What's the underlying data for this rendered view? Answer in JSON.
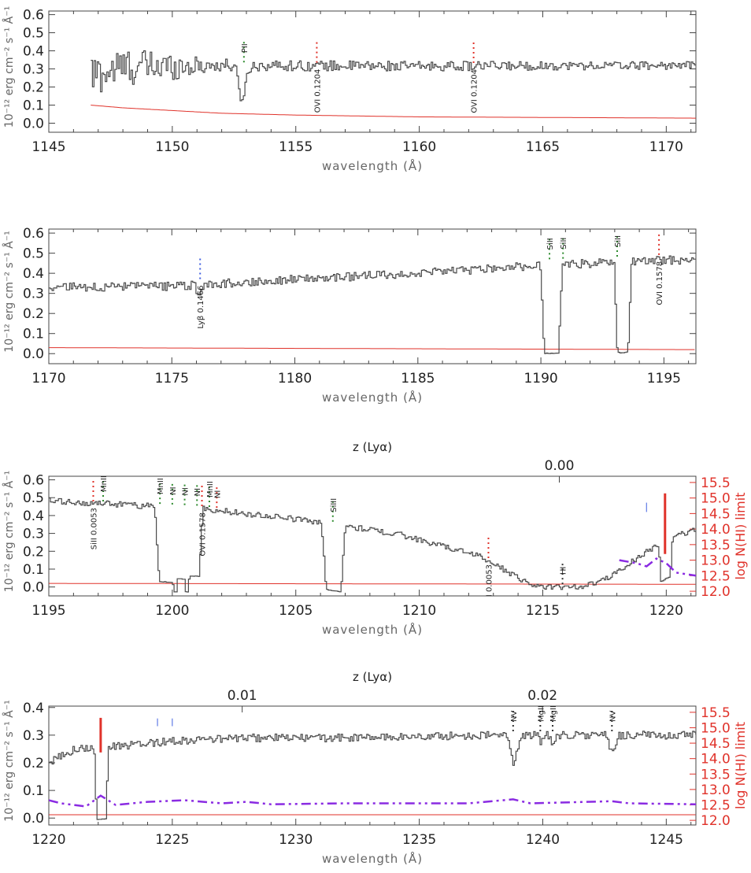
{
  "colors": {
    "spectrum": "#4a4a4a",
    "error": "#e0322a",
    "model": "#8a2be2",
    "right_axis": "#e0322a",
    "line_green": "#2e8b2e",
    "line_red": "#e0322a",
    "line_blue": "#4060e0",
    "nhi_marker": "#e0322a"
  },
  "chart_data": [
    {
      "type": "line",
      "panel": 1,
      "xlabel": "wavelength (Å)",
      "ylabel": "10⁻¹² erg cm⁻² s⁻¹ Å⁻¹",
      "xlim": [
        1145,
        1171.2
      ],
      "ylim": [
        -0.05,
        0.62
      ],
      "x_ticks": [
        1145,
        1150,
        1155,
        1160,
        1165,
        1170
      ],
      "y_ticks": [
        "0.0",
        "0.1",
        "0.2",
        "0.3",
        "0.4",
        "0.5",
        "0.6"
      ],
      "y_tick_values": [
        0.0,
        0.1,
        0.2,
        0.3,
        0.4,
        0.5,
        0.6
      ],
      "spectrum_start": 1146.7,
      "continuum": [
        [
          1146.7,
          0.26
        ],
        [
          1148,
          0.31
        ],
        [
          1152,
          0.32
        ],
        [
          1160,
          0.315
        ],
        [
          1171.2,
          0.32
        ]
      ],
      "noise_profile": [
        [
          1146.7,
          0.1
        ],
        [
          1149.5,
          0.075
        ],
        [
          1151,
          0.04
        ],
        [
          1153,
          0.025
        ],
        [
          1171.2,
          0.018
        ]
      ],
      "absorptions": [
        {
          "center": 1152.8,
          "depth": 0.18,
          "width": 0.2
        }
      ],
      "error_curve": [
        [
          1146.7,
          0.1
        ],
        [
          1148,
          0.085
        ],
        [
          1150,
          0.07
        ],
        [
          1152,
          0.055
        ],
        [
          1155,
          0.045
        ],
        [
          1160,
          0.035
        ],
        [
          1171.2,
          0.028
        ]
      ],
      "line_labels": [
        {
          "x": 1152.9,
          "text": "PII",
          "tick": "green"
        },
        {
          "x": 1155.85,
          "text": "OVI 0.1204",
          "tick": "red"
        },
        {
          "x": 1162.2,
          "text": "OVI 0.1204",
          "tick": "red"
        }
      ]
    },
    {
      "type": "line",
      "panel": 2,
      "xlabel": "wavelength (Å)",
      "ylabel": "10⁻¹² erg cm⁻² s⁻¹ Å⁻¹",
      "xlim": [
        1170,
        1196.3
      ],
      "ylim": [
        -0.05,
        0.62
      ],
      "x_ticks": [
        1170,
        1175,
        1180,
        1185,
        1190,
        1195
      ],
      "y_ticks": [
        "0.0",
        "0.1",
        "0.2",
        "0.3",
        "0.4",
        "0.5",
        "0.6"
      ],
      "y_tick_values": [
        0.0,
        0.1,
        0.2,
        0.3,
        0.4,
        0.5,
        0.6
      ],
      "spectrum_start": 1170,
      "continuum": [
        [
          1170,
          0.33
        ],
        [
          1175,
          0.335
        ],
        [
          1180,
          0.37
        ],
        [
          1185,
          0.4
        ],
        [
          1190,
          0.44
        ],
        [
          1196.3,
          0.47
        ]
      ],
      "noise_profile": [
        [
          1170,
          0.018
        ],
        [
          1196.3,
          0.018
        ]
      ],
      "absorptions": [
        {
          "center": 1176.1,
          "depth": 0.07,
          "width": 0.12
        },
        {
          "center": 1190.4,
          "depth": 0.44,
          "width": 0.28,
          "flat": true
        },
        {
          "center": 1193.3,
          "depth": 0.45,
          "width": 0.22,
          "flat": true
        }
      ],
      "error_curve": [
        [
          1170,
          0.03
        ],
        [
          1196.3,
          0.02
        ]
      ],
      "line_labels": [
        {
          "x": 1176.15,
          "text": "Lyβ 0.1466",
          "tick": "blue"
        },
        {
          "x": 1190.35,
          "text": "SiII",
          "tick": "green"
        },
        {
          "x": 1190.9,
          "text": "SiII",
          "tick": "green"
        },
        {
          "x": 1193.1,
          "text": "SiII",
          "tick": "green"
        },
        {
          "x": 1194.8,
          "text": "OVI 0.1578",
          "tick": "red"
        }
      ]
    },
    {
      "type": "line",
      "panel": 3,
      "xlabel": "wavelength (Å)",
      "ylabel": "10⁻¹² erg cm⁻² s⁻¹ Å⁻¹",
      "top_label": "z (Lyα)",
      "top_ticks": [
        {
          "x": 1215.67,
          "label": "0.00"
        }
      ],
      "right_label": "log N(HI) limit",
      "right_ticks": [
        "12.0",
        "12.5",
        "13.0",
        "13.5",
        "14.0",
        "14.5",
        "15.0",
        "15.5"
      ],
      "right_tick_values": [
        12.0,
        12.5,
        13.0,
        13.5,
        14.0,
        14.5,
        15.0,
        15.5
      ],
      "right_lim": [
        11.85,
        15.7
      ],
      "xlim": [
        1195,
        1221.2
      ],
      "ylim": [
        -0.05,
        0.62
      ],
      "x_ticks": [
        1195,
        1200,
        1205,
        1210,
        1215,
        1220
      ],
      "y_ticks": [
        "0.0",
        "0.1",
        "0.2",
        "0.3",
        "0.4",
        "0.5",
        "0.6"
      ],
      "y_tick_values": [
        0.0,
        0.1,
        0.2,
        0.3,
        0.4,
        0.5,
        0.6
      ],
      "spectrum_start": 1195,
      "continuum": [
        [
          1195,
          0.48
        ],
        [
          1198,
          0.46
        ],
        [
          1201,
          0.44
        ],
        [
          1205,
          0.38
        ],
        [
          1209,
          0.3
        ],
        [
          1212.5,
          0.17
        ],
        [
          1214,
          0.05
        ],
        [
          1214.8,
          0.0
        ],
        [
          1216.5,
          0.0
        ],
        [
          1217.5,
          0.04
        ],
        [
          1219,
          0.18
        ],
        [
          1220,
          0.27
        ],
        [
          1221.2,
          0.32
        ]
      ],
      "noise_profile": [
        [
          1195,
          0.015
        ],
        [
          1221.2,
          0.012
        ]
      ],
      "absorptions": [
        {
          "center": 1199.75,
          "depth": 0.42,
          "width": 0.3,
          "flat": true
        },
        {
          "center": 1200.4,
          "depth": 0.4,
          "width": 0.25,
          "flat": true
        },
        {
          "center": 1200.85,
          "depth": 0.38,
          "width": 0.22,
          "flat": true
        },
        {
          "center": 1206.5,
          "depth": 0.37,
          "width": 0.3,
          "flat": true
        },
        {
          "center": 1219.95,
          "depth": 0.22,
          "width": 0.18,
          "flat": true
        }
      ],
      "error_curve": [
        [
          1195,
          0.02
        ],
        [
          1221.2,
          0.015
        ]
      ],
      "model_curve": [
        [
          1218.1,
          13.0
        ],
        [
          1218.8,
          12.9
        ],
        [
          1219.2,
          12.8
        ],
        [
          1219.6,
          13.05
        ],
        [
          1220.0,
          12.9
        ],
        [
          1220.4,
          12.6
        ],
        [
          1221.2,
          12.5
        ]
      ],
      "nhi_markers": [
        {
          "x": 1219.95,
          "from": 13.2,
          "to": 15.15,
          "color": "red",
          "width": 3
        },
        {
          "x": 1219.2,
          "from": 14.55,
          "to": 14.85,
          "color": "blue",
          "width": 1
        }
      ],
      "line_labels": [
        {
          "x": 1196.8,
          "text": "SiII 0.0053",
          "tick": "red"
        },
        {
          "x": 1197.2,
          "text": "MnII",
          "tick": "green"
        },
        {
          "x": 1199.5,
          "text": "MnII",
          "tick": "green"
        },
        {
          "x": 1200.0,
          "text": "NI",
          "tick": "green"
        },
        {
          "x": 1200.5,
          "text": "NI",
          "tick": "green"
        },
        {
          "x": 1201.0,
          "text": "NI",
          "tick": "green"
        },
        {
          "x": 1201.2,
          "text": "OVI 0.1578",
          "tick": "red"
        },
        {
          "x": 1201.5,
          "text": "MnII",
          "tick": "green"
        },
        {
          "x": 1201.8,
          "text": "NI",
          "tick": "red"
        },
        {
          "x": 1206.5,
          "text": "SiIII",
          "tick": "green"
        },
        {
          "x": 1212.8,
          "text": "SiIII 0.0053",
          "tick": "red"
        },
        {
          "x": 1215.8,
          "text": "HI",
          "tick": "black"
        }
      ]
    },
    {
      "type": "line",
      "panel": 4,
      "xlabel": "wavelength (Å)",
      "ylabel": "10⁻¹² erg cm⁻² s⁻¹ Å⁻¹",
      "top_label": "z (Lyα)",
      "top_ticks": [
        {
          "x": 1227.83,
          "label": "0.01"
        },
        {
          "x": 1239.99,
          "label": "0.02"
        }
      ],
      "right_label": "log N(HI) limit",
      "right_ticks": [
        "12.0",
        "12.5",
        "13.0",
        "13.5",
        "14.0",
        "14.5",
        "15.0",
        "15.5"
      ],
      "right_tick_values": [
        12.0,
        12.5,
        13.0,
        13.5,
        14.0,
        14.5,
        15.0,
        15.5
      ],
      "right_lim": [
        11.85,
        15.7
      ],
      "xlim": [
        1220,
        1246.2
      ],
      "ylim": [
        -0.025,
        0.405
      ],
      "x_ticks": [
        1220,
        1225,
        1230,
        1235,
        1240,
        1245
      ],
      "y_ticks": [
        "0.0",
        "0.1",
        "0.2",
        "0.3",
        "0.4"
      ],
      "y_tick_values": [
        0.0,
        0.1,
        0.2,
        0.3,
        0.4
      ],
      "spectrum_start": 1220,
      "continuum": [
        [
          1220,
          0.2
        ],
        [
          1221,
          0.25
        ],
        [
          1223,
          0.26
        ],
        [
          1225,
          0.28
        ],
        [
          1228,
          0.29
        ],
        [
          1232,
          0.29
        ],
        [
          1238,
          0.3
        ],
        [
          1242,
          0.3
        ],
        [
          1246.2,
          0.3
        ]
      ],
      "noise_profile": [
        [
          1220,
          0.012
        ],
        [
          1246.2,
          0.012
        ]
      ],
      "absorptions": [
        {
          "center": 1222.1,
          "depth": 0.26,
          "width": 0.18,
          "flat": true
        },
        {
          "center": 1238.8,
          "depth": 0.1,
          "width": 0.18
        },
        {
          "center": 1239.9,
          "depth": 0.03,
          "width": 0.1
        },
        {
          "center": 1240.4,
          "depth": 0.03,
          "width": 0.1
        },
        {
          "center": 1242.8,
          "depth": 0.07,
          "width": 0.15
        }
      ],
      "error_curve": [
        [
          1220,
          0.012
        ],
        [
          1246.2,
          0.012
        ]
      ],
      "model_curve": [
        [
          1220,
          12.65
        ],
        [
          1220.5,
          12.55
        ],
        [
          1221.5,
          12.45
        ],
        [
          1222.1,
          12.8
        ],
        [
          1222.7,
          12.5
        ],
        [
          1224,
          12.6
        ],
        [
          1225.5,
          12.65
        ],
        [
          1227,
          12.55
        ],
        [
          1228,
          12.6
        ],
        [
          1229,
          12.52
        ],
        [
          1232,
          12.55
        ],
        [
          1234,
          12.55
        ],
        [
          1237,
          12.55
        ],
        [
          1238.8,
          12.68
        ],
        [
          1239.5,
          12.55
        ],
        [
          1242.8,
          12.62
        ],
        [
          1243.5,
          12.55
        ],
        [
          1246.2,
          12.52
        ]
      ],
      "nhi_markers": [
        {
          "x": 1222.1,
          "from": 14.2,
          "to": 15.32,
          "color": "red",
          "width": 3
        },
        {
          "x": 1224.4,
          "from": 15.05,
          "to": 15.3,
          "color": "blue",
          "width": 1
        },
        {
          "x": 1225.0,
          "from": 15.05,
          "to": 15.3,
          "color": "blue",
          "width": 1
        }
      ],
      "line_labels": [
        {
          "x": 1238.8,
          "text": "NV",
          "tick": "black"
        },
        {
          "x": 1239.9,
          "text": "MgII",
          "tick": "black"
        },
        {
          "x": 1240.4,
          "text": "MgII",
          "tick": "black"
        },
        {
          "x": 1242.8,
          "text": "NV",
          "tick": "black"
        }
      ]
    }
  ]
}
